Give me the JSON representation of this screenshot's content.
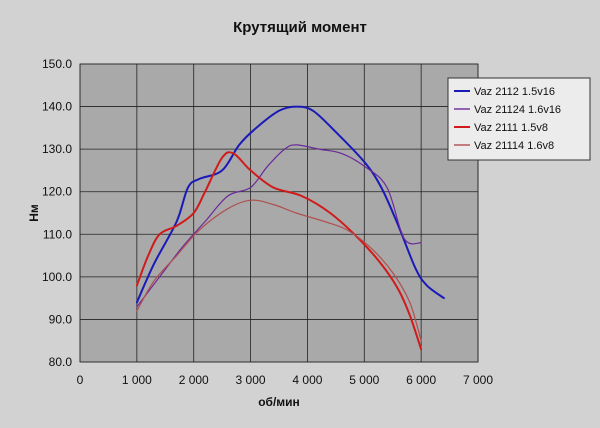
{
  "chart_data": {
    "type": "line",
    "title": "Крутящий момент",
    "xlabel": "об/мин",
    "ylabel": "Нм",
    "xlim": [
      0,
      7000
    ],
    "ylim": [
      80,
      150
    ],
    "x_ticks": [
      "0",
      "1 000",
      "2 000",
      "3 000",
      "4 000",
      "5 000",
      "6 000",
      "7 000"
    ],
    "x_tick_values": [
      0,
      1000,
      2000,
      3000,
      4000,
      5000,
      6000,
      7000
    ],
    "y_ticks": [
      "80.0",
      "90.0",
      "100.0",
      "110.0",
      "120.0",
      "130.0",
      "140.0",
      "150.0"
    ],
    "y_tick_values": [
      80,
      90,
      100,
      110,
      120,
      130,
      140,
      150
    ],
    "grid": true,
    "legend_position": "top-right",
    "series": [
      {
        "name": "Vaz 2112 1.5v16",
        "color": "#1a1ab8",
        "x": [
          1000,
          1300,
          1700,
          1900,
          2100,
          2500,
          2800,
          3100,
          3500,
          3800,
          4100,
          4500,
          5000,
          5300,
          5600,
          5900,
          6100,
          6400
        ],
        "y": [
          94,
          103,
          113,
          121,
          123,
          125,
          131,
          135,
          139,
          140,
          139,
          134,
          127,
          121,
          112,
          102,
          98,
          95
        ]
      },
      {
        "name": "Vaz 21124 1.6v16",
        "color": "#6a2a9a",
        "x": [
          1000,
          1400,
          1800,
          2200,
          2600,
          3000,
          3300,
          3600,
          3800,
          4200,
          4600,
          5000,
          5400,
          5700,
          6000
        ],
        "y": [
          93,
          100,
          107,
          113,
          119,
          121,
          126,
          130,
          131,
          130,
          129,
          126,
          121,
          109,
          108
        ]
      },
      {
        "name": "Vaz 2111 1.5v8",
        "color": "#d11a1a",
        "x": [
          1000,
          1200,
          1400,
          1700,
          2000,
          2200,
          2500,
          2700,
          3000,
          3400,
          3900,
          4400,
          4900,
          5300,
          5600,
          5800,
          6000
        ],
        "y": [
          98,
          105,
          110,
          112,
          115,
          120,
          128,
          129,
          125,
          121,
          119,
          115,
          109,
          103,
          97,
          91,
          83
        ]
      },
      {
        "name": "Vaz 21114 1.6v8",
        "color": "#b05050",
        "x": [
          1000,
          1300,
          1700,
          2100,
          2600,
          3000,
          3400,
          3800,
          4300,
          4700,
          5100,
          5500,
          5800,
          6000
        ],
        "y": [
          92,
          99,
          105,
          111,
          116,
          118,
          117,
          115,
          113,
          111,
          107,
          101,
          94,
          85
        ]
      }
    ]
  }
}
